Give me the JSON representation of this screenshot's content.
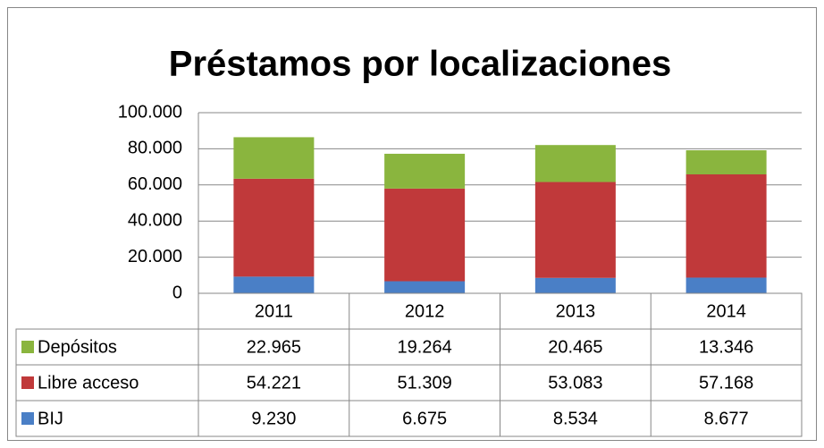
{
  "chart_data": {
    "type": "stacked-bar",
    "title": "Préstamos por localizaciones",
    "categories": [
      "2011",
      "2012",
      "2013",
      "2014"
    ],
    "series": [
      {
        "name": "Depósitos",
        "color": "#8ab53e",
        "values": [
          22965,
          19264,
          20465,
          13346
        ],
        "value_labels": [
          "22.965",
          "19.264",
          "20.465",
          "13.346"
        ]
      },
      {
        "name": "Libre acceso",
        "color": "#c0393a",
        "values": [
          54221,
          51309,
          53083,
          57168
        ],
        "value_labels": [
          "54.221",
          "51.309",
          "53.083",
          "57.168"
        ]
      },
      {
        "name": "BIJ",
        "color": "#4a7fc6",
        "values": [
          9230,
          6675,
          8534,
          8677
        ],
        "value_labels": [
          "9.230",
          "6.675",
          "8.534",
          "8.677"
        ]
      }
    ],
    "ylim": [
      0,
      100000
    ],
    "yticks": [
      0,
      {
        "value": 20000,
        "label": "20.000"
      },
      {
        "value": 40000,
        "label": "40.000"
      },
      {
        "value": 60000,
        "label": "60.000"
      },
      {
        "value": 80000,
        "label": "80.000"
      },
      {
        "value": 100000,
        "label": "100.000"
      }
    ],
    "grid": true
  }
}
